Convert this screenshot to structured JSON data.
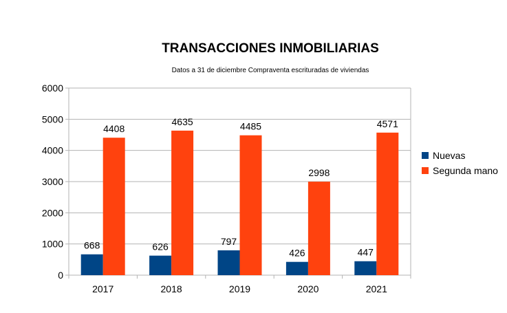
{
  "chart_data": {
    "type": "bar",
    "title": "TRANSACCIONES INMOBILIARIAS",
    "subtitle": "Datos a 31 de diciembre Compraventa escrituradas de viviendas",
    "xlabel": "",
    "ylabel": "",
    "ylim": [
      0,
      6000
    ],
    "yticks": [
      0,
      1000,
      2000,
      3000,
      4000,
      5000,
      6000
    ],
    "grid": true,
    "legend_position": "right",
    "categories": [
      "2017",
      "2018",
      "2019",
      "2020",
      "2021"
    ],
    "series": [
      {
        "name": "Nuevas",
        "color": "#004586",
        "values": [
          668,
          626,
          797,
          426,
          447
        ]
      },
      {
        "name": "Segunda mano",
        "color": "#ff420e",
        "values": [
          4408,
          4635,
          4485,
          2998,
          4571
        ]
      }
    ]
  }
}
